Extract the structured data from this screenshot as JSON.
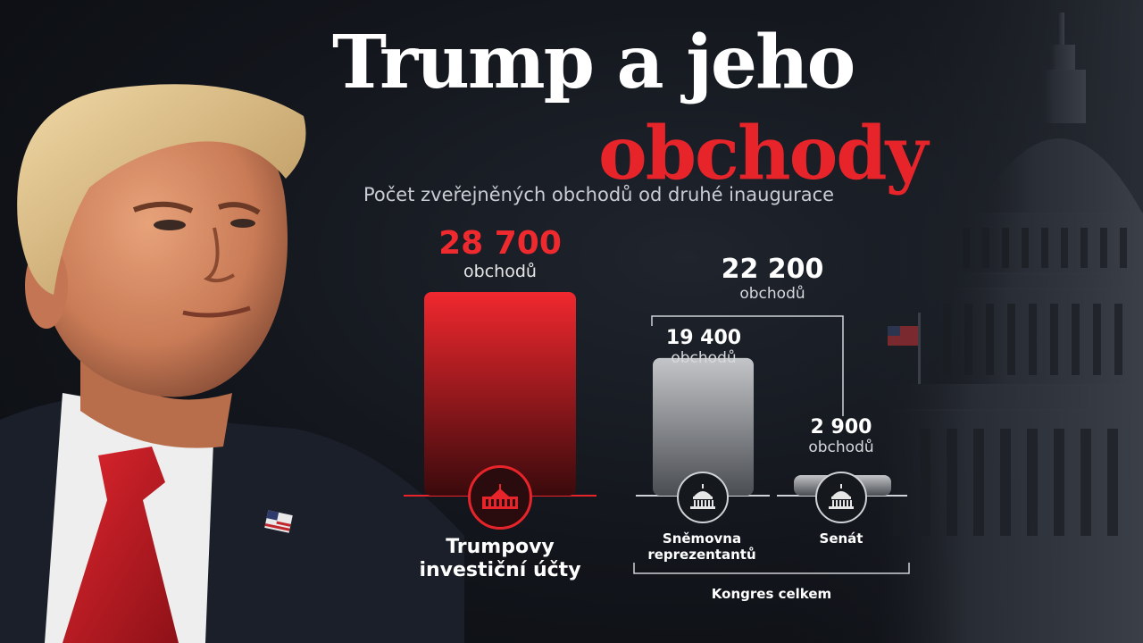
{
  "header": {
    "title_line1": "Trump a jeho",
    "title_line2": "obchody",
    "subtitle": "Počet zveřejněných obchodů od druhé inaugurace"
  },
  "colors": {
    "accent_red": "#e8242b",
    "background": "#12151b",
    "grey_bar": "#b5b7ba"
  },
  "chart_data": {
    "type": "bar",
    "title": "Trump a jeho obchody",
    "subtitle": "Počet zveřejněných obchodů od druhé inaugurace",
    "unit": "obchodů",
    "categories": [
      "Trumpovy investiční účty",
      "Sněmovna reprezentantů",
      "Senát"
    ],
    "values": [
      28700,
      19400,
      2900
    ],
    "value_labels": [
      "28 700",
      "19 400",
      "2 900"
    ],
    "group": {
      "label": "Kongres celkem",
      "total": 22200,
      "total_label": "22 200",
      "members": [
        "Sněmovna reprezentantů",
        "Senát"
      ]
    },
    "category_lines": [
      [
        "Trumpovy",
        "investiční účty"
      ],
      [
        "Sněmovna",
        "reprezentantů"
      ],
      [
        "Senát"
      ]
    ],
    "icons": [
      "white-house-icon",
      "capitol-dome-icon",
      "capitol-dome-icon"
    ],
    "colors": [
      "#e8242b",
      "#b5b7ba",
      "#b5b7ba"
    ]
  }
}
